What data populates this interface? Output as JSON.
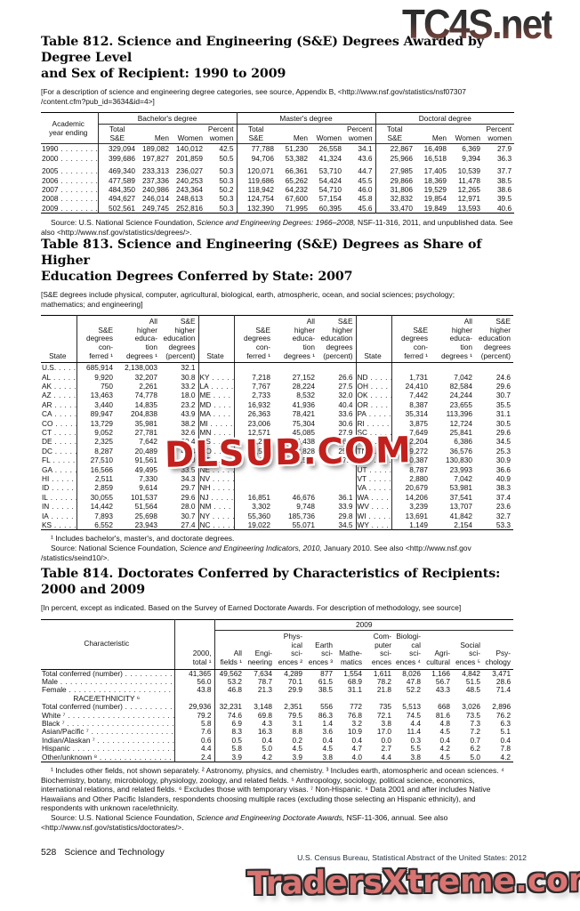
{
  "watermarks": {
    "top": "TC4S.net",
    "middle": "DLSUB.COM",
    "bottom": "TradersXtreme.com"
  },
  "colors": {
    "watermark_red": "#c2201d",
    "watermark_salmon": "#d97472",
    "rule": "#2a2a2a"
  },
  "table812": {
    "title_line1": "Table 812. Science and Engineering (S&E) Degrees Awarded by Degree Level",
    "title_line2": "and Sex of Recipient: 1990 to 2009",
    "note": "[For a description of science and engineering degree categories, see source, Appendix B, <http://www.nsf.gov/statistics/nsf07307\n/content.cfm?pub_id=3634&id=4>]",
    "row_header": "Academic\nyear ending",
    "groups": [
      "Bachelor's degree",
      "Master's degree",
      "Doctoral degree"
    ],
    "sub_headers": [
      "Total\nS&E",
      "Men",
      "Women",
      "Percent\nwomen"
    ],
    "rows": [
      {
        "label": "1990",
        "v": [
          "329,094",
          "189,082",
          "140,012",
          "42.5",
          "77,788",
          "51,230",
          "26,558",
          "34.1",
          "22,867",
          "16,498",
          "6,369",
          "27.9"
        ]
      },
      {
        "label": "2000",
        "v": [
          "399,686",
          "197,827",
          "201,859",
          "50.5",
          "94,706",
          "53,382",
          "41,324",
          "43.6",
          "25,966",
          "16,518",
          "9,394",
          "36.3"
        ]
      },
      {
        "label": "2005",
        "v": [
          "469,340",
          "233,313",
          "236,027",
          "50.3",
          "120,071",
          "66,361",
          "53,710",
          "44.7",
          "27,985",
          "17,405",
          "10,539",
          "37.7"
        ]
      },
      {
        "label": "2006",
        "v": [
          "477,589",
          "237,336",
          "240,253",
          "50.3",
          "119,686",
          "65,262",
          "54,424",
          "45.5",
          "29,866",
          "18,369",
          "11,478",
          "38.5"
        ]
      },
      {
        "label": "2007",
        "v": [
          "484,350",
          "240,986",
          "243,364",
          "50.2",
          "118,942",
          "64,232",
          "54,710",
          "46.0",
          "31,806",
          "19,529",
          "12,265",
          "38.6"
        ]
      },
      {
        "label": "2008",
        "v": [
          "494,627",
          "246,014",
          "248,613",
          "50.3",
          "124,754",
          "67,600",
          "57,154",
          "45.8",
          "32,832",
          "19,854",
          "12,971",
          "39.5"
        ]
      },
      {
        "label": "2009",
        "v": [
          "502,561",
          "249,745",
          "252,816",
          "50.3",
          "132,390",
          "71,995",
          "60,395",
          "45.6",
          "33,470",
          "19,849",
          "13,593",
          "40.6"
        ]
      }
    ],
    "source_pre": "Source: U.S. National Science Foundation, ",
    "source_italic": "Science and Engineering Degrees: 1966–2008,",
    "source_post": " NSF-11-316, 2011, and unpublished data. See also <http://www.nsf.gov/statistics/degrees/>."
  },
  "table813": {
    "title_line1": "Table 813. Science and Engineering (S&E) Degrees as Share of Higher",
    "title_line2": "Education Degrees Conferred by State: 2007",
    "note": "[S&E degrees include physical, computer, agricultural, biological, earth, atmospheric, ocean, and social sciences; psychology;\nmathematics; and engineering]",
    "col_headers": [
      "State",
      "S&E\ndegrees\ncon-\nferred ¹",
      "All\nhigher\neduca-\ntion\ndegrees ¹",
      "S&E\nhigher\neducation\ndegrees\n(percent)"
    ],
    "groups": [
      {
        "rows": [
          {
            "label": "U.S.",
            "bold": true,
            "v": [
              "685,914",
              "2,138,003",
              "32.1"
            ]
          },
          {
            "label": "AL",
            "v": [
              "9,920",
              "32,207",
              "30.8"
            ]
          },
          {
            "label": "AK",
            "v": [
              "750",
              "2,261",
              "33.2"
            ]
          },
          {
            "label": "AZ",
            "v": [
              "13,463",
              "74,778",
              "18.0"
            ]
          },
          {
            "label": "AR",
            "v": [
              "3,440",
              "14,835",
              "23.2"
            ]
          },
          {
            "label": "CA",
            "v": [
              "89,947",
              "204,838",
              "43.9"
            ]
          },
          {
            "label": "CO",
            "v": [
              "13,729",
              "35,981",
              "38.2"
            ]
          },
          {
            "label": "CT",
            "v": [
              "9,052",
              "27,781",
              "32.6"
            ]
          },
          {
            "label": "DE",
            "v": [
              "2,325",
              "7,642",
              "30.4"
            ]
          },
          {
            "label": "DC",
            "v": [
              "8,287",
              "20,489",
              "40.4"
            ]
          },
          {
            "label": "FL",
            "v": [
              "27,510",
              "91,561",
              "30.0"
            ]
          },
          {
            "label": "GA",
            "v": [
              "16,566",
              "49,495",
              "33.5"
            ]
          },
          {
            "label": "HI",
            "v": [
              "2,511",
              "7,330",
              "34.3"
            ]
          },
          {
            "label": "ID",
            "v": [
              "2,859",
              "9,614",
              "29.7"
            ]
          },
          {
            "label": "IL",
            "v": [
              "30,055",
              "101,537",
              "29.6"
            ]
          },
          {
            "label": "IN",
            "v": [
              "14,442",
              "51,564",
              "28.0"
            ]
          },
          {
            "label": "IA",
            "v": [
              "7,893",
              "25,698",
              "30.7"
            ]
          },
          {
            "label": "KS",
            "v": [
              "6,552",
              "23,943",
              "27.4"
            ]
          }
        ]
      },
      {
        "rows": [
          {
            "label": "KY",
            "v": [
              "7,218",
              "27,152",
              "26.6"
            ]
          },
          {
            "label": "LA",
            "v": [
              "7,767",
              "28,224",
              "27.5"
            ]
          },
          {
            "label": "ME",
            "v": [
              "2,733",
              "8,532",
              "32.0"
            ]
          },
          {
            "label": "MD",
            "v": [
              "16,932",
              "41,936",
              "40.4"
            ]
          },
          {
            "label": "MA",
            "v": [
              "26,363",
              "78,421",
              "33.6"
            ]
          },
          {
            "label": "MI",
            "v": [
              "23,006",
              "75,304",
              "30.6"
            ]
          },
          {
            "label": "MN",
            "v": [
              "12,571",
              "45,085",
              "27.9"
            ]
          },
          {
            "label": "MS",
            "v": [
              "4,294",
              "16,438",
              "26.1"
            ]
          },
          {
            "label": "MO",
            "v": [
              "13,515",
              "53,828",
              "25.1"
            ]
          },
          {
            "label": "MT",
            "v": [
              "2,452",
              "6,506",
              "37.7"
            ]
          },
          {
            "label": "NE",
            "v": [
              "",
              "",
              ""
            ]
          },
          {
            "label": "NV",
            "v": [
              "",
              "",
              ""
            ]
          },
          {
            "label": "NH",
            "v": [
              "",
              "",
              ""
            ]
          },
          {
            "label": "NJ",
            "v": [
              "16,851",
              "46,676",
              "36.1"
            ]
          },
          {
            "label": "NM",
            "v": [
              "3,302",
              "9,748",
              "33.9"
            ]
          },
          {
            "label": "NY",
            "v": [
              "55,360",
              "185,736",
              "29.8"
            ]
          },
          {
            "label": "NC",
            "v": [
              "19,022",
              "55,071",
              "34.5"
            ]
          }
        ]
      },
      {
        "rows": [
          {
            "label": "ND",
            "v": [
              "1,731",
              "7,042",
              "24.6"
            ]
          },
          {
            "label": "OH",
            "v": [
              "24,410",
              "82,584",
              "29.6"
            ]
          },
          {
            "label": "OK",
            "v": [
              "7,442",
              "24,244",
              "30.7"
            ]
          },
          {
            "label": "OR",
            "v": [
              "8,387",
              "23,655",
              "35.5"
            ]
          },
          {
            "label": "PA",
            "v": [
              "35,314",
              "113,396",
              "31.1"
            ]
          },
          {
            "label": "RI",
            "v": [
              "3,875",
              "12,724",
              "30.5"
            ]
          },
          {
            "label": "SC",
            "v": [
              "7,649",
              "25,841",
              "29.6"
            ]
          },
          {
            "label": "SD",
            "v": [
              "2,204",
              "6,386",
              "34.5"
            ]
          },
          {
            "label": "TN",
            "v": [
              "9,272",
              "36,576",
              "25.3"
            ]
          },
          {
            "label": "TX",
            "v": [
              "40,387",
              "130,830",
              "30.9"
            ]
          },
          {
            "label": "UT",
            "v": [
              "8,787",
              "23,993",
              "36.6"
            ]
          },
          {
            "label": "VT",
            "v": [
              "2,880",
              "7,042",
              "40.9"
            ]
          },
          {
            "label": "VA",
            "v": [
              "20,679",
              "53,981",
              "38.3"
            ]
          },
          {
            "label": "WA",
            "v": [
              "14,206",
              "37,541",
              "37.4"
            ]
          },
          {
            "label": "WV",
            "v": [
              "3,239",
              "13,707",
              "23.6"
            ]
          },
          {
            "label": "WI",
            "v": [
              "13,691",
              "41,842",
              "32.7"
            ]
          },
          {
            "label": "WY",
            "v": [
              "1,149",
              "2,154",
              "53.3"
            ]
          }
        ]
      }
    ],
    "footnote": "¹ Includes bachelor's, master's, and doctorate degrees.",
    "source_pre": "Source: National Science Foundation, ",
    "source_italic": "Science and Engineering Indicators, 2010,",
    "source_post": " January 2010. See also <http://www.nsf.gov /statistics/seind10/>."
  },
  "table814": {
    "title_line1": "Table 814. Doctorates Conferred by Characteristics of Recipients:",
    "title_line2": "2000 and 2009",
    "note": "[In percent, except as indicated. Based on the Survey of Earned Doctorate Awards. For description of methodology, see source]",
    "col1_header": "Characteristic",
    "col2_header": "2000,\ntotal ¹",
    "year_header": "2009",
    "col_headers": [
      "All\nfields ¹",
      "Engi-\nneering",
      "Phys-\nical\nsci-\nences ²",
      "Earth\nsci-\nences ³",
      "Mathe-\nmatics",
      "Com-\nputer\nsci-\nences",
      "Biologi-\ncal\nsci-\nences ⁴",
      "Agri-\ncultural",
      "Social\nsci-\nences ⁵",
      "Psy-\nchology"
    ],
    "rows": [
      {
        "label": "Total conferred (number)",
        "bold": true,
        "v": [
          "41,365",
          "49,562",
          "7,634",
          "4,289",
          "877",
          "1,554",
          "1,611",
          "8,026",
          "1,166",
          "4,842",
          "3,471"
        ]
      },
      {
        "label": "Male",
        "v": [
          "56.0",
          "53.2",
          "78.7",
          "70.1",
          "61.5",
          "68.9",
          "78.2",
          "47.8",
          "56.7",
          "51.5",
          "28.6"
        ]
      },
      {
        "label": "Female",
        "v": [
          "43.8",
          "46.8",
          "21.3",
          "29.9",
          "38.5",
          "31.1",
          "21.8",
          "52.2",
          "43.3",
          "48.5",
          "71.4"
        ]
      },
      {
        "section": "RACE/ETHNICITY ⁶"
      },
      {
        "label": "Total conferred (number)",
        "bold": true,
        "v": [
          "29,936",
          "32,231",
          "3,148",
          "2,351",
          "556",
          "772",
          "735",
          "5,513",
          "668",
          "3,026",
          "2,896"
        ]
      },
      {
        "label": "White ⁷",
        "v": [
          "79.2",
          "74.6",
          "69.8",
          "79.5",
          "86.3",
          "76.8",
          "72.1",
          "74.5",
          "81.6",
          "73.5",
          "76.2"
        ]
      },
      {
        "label": "Black ⁷",
        "v": [
          "5.8",
          "6.9",
          "4.3",
          "3.1",
          "1.4",
          "3.2",
          "3.8",
          "4.4",
          "4.8",
          "7.3",
          "6.3"
        ]
      },
      {
        "label": "Asian/Pacific ⁷",
        "v": [
          "7.6",
          "8.3",
          "16.3",
          "8.8",
          "3.6",
          "10.9",
          "17.0",
          "11.4",
          "4.5",
          "7.2",
          "5.1"
        ]
      },
      {
        "label": "Indian/Alaskan ⁷",
        "v": [
          "0.6",
          "0.5",
          "0.4",
          "0.2",
          "0.4",
          "0.4",
          "0.0",
          "0.3",
          "0.4",
          "0.7",
          "0.4"
        ]
      },
      {
        "label": "Hispanic",
        "v": [
          "4.4",
          "5.8",
          "5.0",
          "4.5",
          "4.5",
          "4.7",
          "2.7",
          "5.5",
          "4.2",
          "6.2",
          "7.8"
        ]
      },
      {
        "label": "Other/unknown ⁸",
        "v": [
          "2.4",
          "3.9",
          "4.2",
          "3.9",
          "3.8",
          "4.0",
          "4.4",
          "3.8",
          "4.5",
          "5.0",
          "4.2"
        ]
      }
    ],
    "footnotes": "¹ Includes other fields, not shown separately. ² Astronomy, physics, and chemistry. ³ Includes earth, atomospheric and ocean sciences. ⁴ Biochemistry, botany, microbiology, physiology, zoology, and related fields. ⁵ Anthropology, sociology, political science, economics, international relations, and related fields. ⁶ Excludes those with temporary visas. ⁷ Non-Hispanic. ⁸ Data 2001 and after includes Native Hawaiians and Other Pacific Islanders, respondents choosing multiple races (excluding those selecting an Hispanic ethnicity), and respondents with unknown race/ethnicity.",
    "source_pre": "Source: U.S. National Science Foundation, ",
    "source_italic": "Science and Engineering Doctorate Awards,",
    "source_post": " NSF-11-306, annual. See also <http://www.nsf.gov/statistics/doctorates/>."
  },
  "footer": {
    "page": "528",
    "section": "Science and Technology",
    "credit": "U.S. Census Bureau, Statistical Abstract of the United States: 2012"
  }
}
